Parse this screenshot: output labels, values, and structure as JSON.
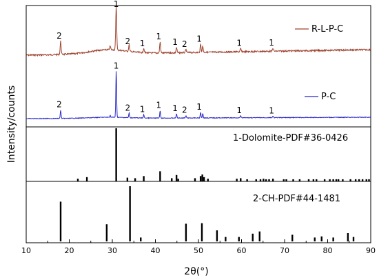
{
  "chart_data": {
    "type": "line",
    "xlabel": "2θ(°)",
    "ylabel": "Intensity/counts",
    "xlim": [
      10,
      90
    ],
    "xticks": [
      10,
      20,
      30,
      40,
      50,
      60,
      70,
      80,
      90
    ],
    "series": [
      {
        "name": "R-L-P-C",
        "color": "#a0432f",
        "peaks": [
          {
            "x": 18.0,
            "h": 0.3,
            "label": "2"
          },
          {
            "x": 29.5,
            "h": 0.08
          },
          {
            "x": 30.9,
            "h": 1.0,
            "label": "1"
          },
          {
            "x": 33.9,
            "h": 0.15,
            "label": "2"
          },
          {
            "x": 37.3,
            "h": 0.1,
            "label": "1"
          },
          {
            "x": 41.1,
            "h": 0.25,
            "label": "1"
          },
          {
            "x": 44.9,
            "h": 0.12,
            "label": "1"
          },
          {
            "x": 47.1,
            "h": 0.07,
            "label": "2"
          },
          {
            "x": 50.5,
            "h": 0.18,
            "label": "1"
          },
          {
            "x": 51.0,
            "h": 0.14
          },
          {
            "x": 59.8,
            "h": 0.07,
            "label": "1"
          },
          {
            "x": 67.3,
            "h": 0.07,
            "label": "1"
          }
        ]
      },
      {
        "name": "P-C",
        "color": "#2828c8",
        "peaks": [
          {
            "x": 18.0,
            "h": 0.18,
            "label": "2"
          },
          {
            "x": 29.5,
            "h": 0.04
          },
          {
            "x": 30.9,
            "h": 1.0,
            "label": "1"
          },
          {
            "x": 33.9,
            "h": 0.1,
            "label": "2"
          },
          {
            "x": 37.3,
            "h": 0.07,
            "label": "1"
          },
          {
            "x": 41.1,
            "h": 0.16,
            "label": "1"
          },
          {
            "x": 44.9,
            "h": 0.09,
            "label": "1"
          },
          {
            "x": 47.1,
            "h": 0.05,
            "label": "2"
          },
          {
            "x": 50.5,
            "h": 0.12,
            "label": "1"
          },
          {
            "x": 51.0,
            "h": 0.1
          },
          {
            "x": 59.8,
            "h": 0.04,
            "label": "1"
          },
          {
            "x": 67.3,
            "h": 0.03,
            "label": "1"
          }
        ]
      }
    ],
    "references": [
      {
        "name": "1-Dolomite-PDF#36-0426",
        "sticks": [
          {
            "x": 22.0,
            "h": 0.05
          },
          {
            "x": 24.1,
            "h": 0.08
          },
          {
            "x": 30.9,
            "h": 1.0
          },
          {
            "x": 33.5,
            "h": 0.07
          },
          {
            "x": 35.3,
            "h": 0.06
          },
          {
            "x": 37.3,
            "h": 0.1
          },
          {
            "x": 41.1,
            "h": 0.19
          },
          {
            "x": 43.8,
            "h": 0.06
          },
          {
            "x": 44.9,
            "h": 0.12
          },
          {
            "x": 45.3,
            "h": 0.05
          },
          {
            "x": 49.2,
            "h": 0.06
          },
          {
            "x": 50.5,
            "h": 0.1
          },
          {
            "x": 50.9,
            "h": 0.13
          },
          {
            "x": 51.3,
            "h": 0.08
          },
          {
            "x": 52.2,
            "h": 0.05
          },
          {
            "x": 58.9,
            "h": 0.05
          },
          {
            "x": 59.8,
            "h": 0.06
          },
          {
            "x": 61.3,
            "h": 0.04
          },
          {
            "x": 63.4,
            "h": 0.04
          },
          {
            "x": 64.4,
            "h": 0.04
          },
          {
            "x": 65.1,
            "h": 0.05
          },
          {
            "x": 65.7,
            "h": 0.04
          },
          {
            "x": 66.4,
            "h": 0.04
          },
          {
            "x": 67.3,
            "h": 0.05
          },
          {
            "x": 69.8,
            "h": 0.04
          },
          {
            "x": 70.4,
            "h": 0.04
          },
          {
            "x": 72.0,
            "h": 0.04
          },
          {
            "x": 73.5,
            "h": 0.04
          },
          {
            "x": 75.6,
            "h": 0.04
          },
          {
            "x": 76.7,
            "h": 0.04
          },
          {
            "x": 77.4,
            "h": 0.04
          },
          {
            "x": 79.3,
            "h": 0.04
          },
          {
            "x": 80.5,
            "h": 0.04
          },
          {
            "x": 81.3,
            "h": 0.04
          },
          {
            "x": 82.0,
            "h": 0.04
          },
          {
            "x": 82.5,
            "h": 0.04
          },
          {
            "x": 83.5,
            "h": 0.04
          },
          {
            "x": 85.3,
            "h": 0.04
          },
          {
            "x": 86.5,
            "h": 0.04
          },
          {
            "x": 87.3,
            "h": 0.04
          },
          {
            "x": 88.1,
            "h": 0.04
          },
          {
            "x": 89.0,
            "h": 0.04
          },
          {
            "x": 89.6,
            "h": 0.04
          }
        ]
      },
      {
        "name": "2-CH-PDF#44-1481",
        "sticks": [
          {
            "x": 18.0,
            "h": 0.72
          },
          {
            "x": 28.7,
            "h": 0.31
          },
          {
            "x": 34.1,
            "h": 1.0
          },
          {
            "x": 36.6,
            "h": 0.07
          },
          {
            "x": 47.1,
            "h": 0.32
          },
          {
            "x": 50.8,
            "h": 0.33
          },
          {
            "x": 54.3,
            "h": 0.2
          },
          {
            "x": 56.3,
            "h": 0.08
          },
          {
            "x": 59.4,
            "h": 0.08
          },
          {
            "x": 62.6,
            "h": 0.14
          },
          {
            "x": 64.2,
            "h": 0.18
          },
          {
            "x": 71.8,
            "h": 0.12
          },
          {
            "x": 77.0,
            "h": 0.07
          },
          {
            "x": 78.6,
            "h": 0.09
          },
          {
            "x": 81.3,
            "h": 0.07
          },
          {
            "x": 84.7,
            "h": 0.15
          },
          {
            "x": 86.0,
            "h": 0.08
          }
        ]
      }
    ]
  }
}
